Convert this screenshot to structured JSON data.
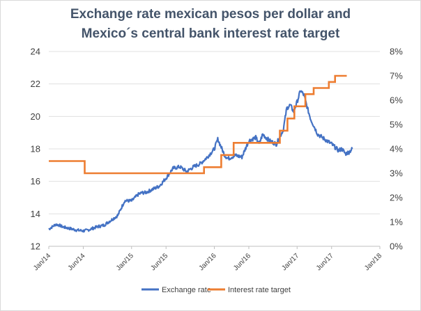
{
  "chart_data": {
    "type": "line",
    "title_lines": [
      "Exchange rate mexican pesos per dollar and",
      "Mexico´s  central bank  interest rate target"
    ],
    "x_ticks": [
      "Jan/14",
      "Jun/14",
      "Jan/15",
      "Jun/15",
      "Jan/16",
      "Jun/16",
      "Jan/17",
      "Jun/17",
      "Jan/18"
    ],
    "x_tick_months": [
      0,
      5,
      12,
      17,
      24,
      29,
      36,
      41,
      48
    ],
    "y_left": {
      "ylim": [
        12,
        24
      ],
      "ticks": [
        "12",
        "14",
        "16",
        "18",
        "20",
        "22",
        "24"
      ]
    },
    "y_right": {
      "ylim": [
        0,
        8
      ],
      "ticks": [
        "0%",
        "1%",
        "2%",
        "3%",
        "4%",
        "5%",
        "6%",
        "7%",
        "8%"
      ]
    },
    "series": [
      {
        "name": "Exchange rate",
        "axis": "left",
        "color": "#4472c4",
        "x_months": [
          0,
          0.5,
          1,
          1.5,
          2,
          3,
          4,
          5,
          5.5,
          6,
          7,
          8,
          9,
          10,
          11,
          12,
          12.5,
          13,
          13.5,
          14,
          15,
          16,
          17,
          18,
          19,
          20,
          21,
          22,
          23,
          24,
          24.5,
          25,
          25.5,
          26,
          27,
          28,
          29,
          30,
          30.5,
          31,
          32,
          33,
          34,
          34.5,
          35,
          35.5,
          36,
          36.5,
          37,
          37.5,
          38,
          39,
          40,
          41,
          42,
          42.5,
          43,
          43.5,
          44
        ],
        "values": [
          13.05,
          13.2,
          13.35,
          13.3,
          13.2,
          13.1,
          13.0,
          12.95,
          12.98,
          13.05,
          13.2,
          13.3,
          13.6,
          13.9,
          14.8,
          14.8,
          15.0,
          15.2,
          15.3,
          15.3,
          15.5,
          15.7,
          16.2,
          16.8,
          16.9,
          16.6,
          16.9,
          17.1,
          17.5,
          18.0,
          18.6,
          18.1,
          17.6,
          17.4,
          17.6,
          17.5,
          18.5,
          18.7,
          18.3,
          18.9,
          18.5,
          18.3,
          19.2,
          20.5,
          20.7,
          20.3,
          20.9,
          21.6,
          21.3,
          20.5,
          19.8,
          18.9,
          18.6,
          18.3,
          17.9,
          18.0,
          17.7,
          17.8,
          18.0
        ]
      },
      {
        "name": "Interest rate target",
        "axis": "right",
        "color": "#ed7d31",
        "steps": [
          {
            "from": 0,
            "to": 5.2,
            "rate": 3.5
          },
          {
            "from": 5.2,
            "to": 22.5,
            "rate": 3.0
          },
          {
            "from": 22.5,
            "to": 25.0,
            "rate": 3.25
          },
          {
            "from": 25.0,
            "to": 26.8,
            "rate": 3.75
          },
          {
            "from": 26.8,
            "to": 30.3,
            "rate": 4.25
          },
          {
            "from": 30.3,
            "to": 33.5,
            "rate": 4.25
          },
          {
            "from": 33.5,
            "to": 34.6,
            "rate": 4.75
          },
          {
            "from": 34.6,
            "to": 35.6,
            "rate": 5.25
          },
          {
            "from": 35.6,
            "to": 37.2,
            "rate": 5.75
          },
          {
            "from": 37.2,
            "to": 38.4,
            "rate": 6.25
          },
          {
            "from": 38.4,
            "to": 40.6,
            "rate": 6.5
          },
          {
            "from": 40.6,
            "to": 41.5,
            "rate": 6.75
          },
          {
            "from": 41.5,
            "to": 43.2,
            "rate": 7.0
          }
        ]
      }
    ],
    "legend": {
      "position": "bottom",
      "items": [
        "Exchange rate",
        "Interest rate target"
      ]
    }
  }
}
